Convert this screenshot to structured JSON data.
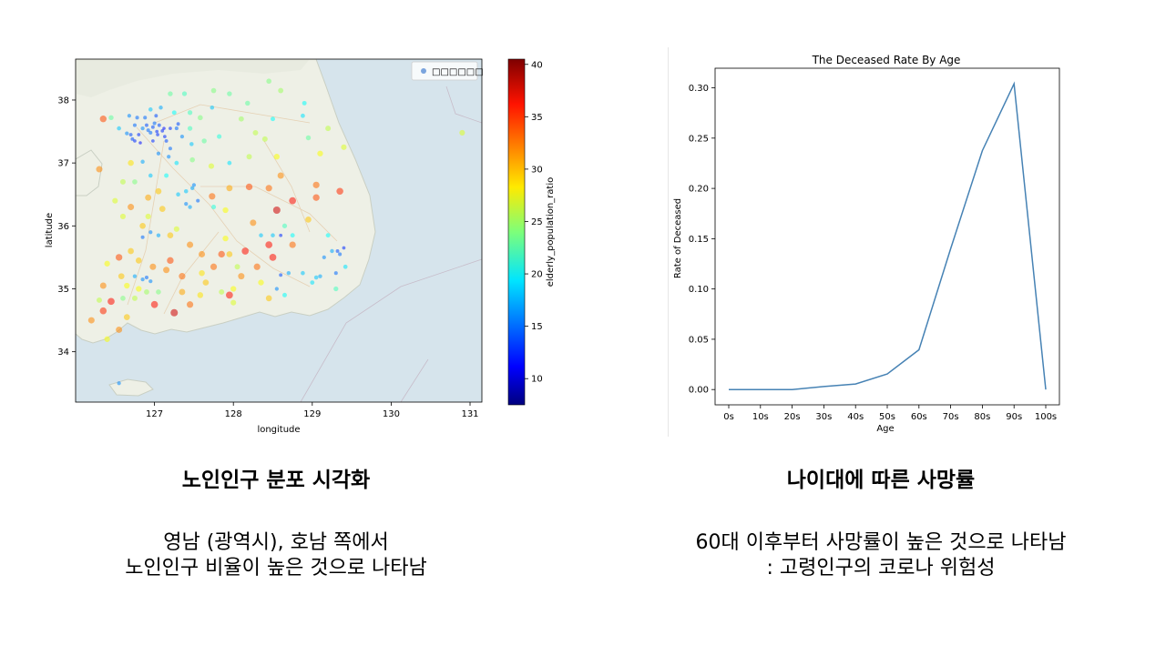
{
  "chart_data": [
    {
      "type": "scatter",
      "xlabel": "longitude",
      "ylabel": "latitude",
      "xlim": [
        126.0,
        131.15
      ],
      "ylim": [
        33.2,
        38.65
      ],
      "xticks": [
        "127",
        "128",
        "129",
        "130",
        "131"
      ],
      "yticks": [
        "34",
        "35",
        "36",
        "37",
        "38"
      ],
      "legend": [
        "□□□□□□"
      ],
      "legend_position": "top-right",
      "colorbar": {
        "label": "elderly_population_ratio",
        "min": 7.5,
        "max": 40.5,
        "ticks": [
          "10",
          "15",
          "20",
          "25",
          "30",
          "35",
          "40"
        ],
        "colormap": "jet"
      },
      "points": [
        [
          126.98,
          37.57,
          14
        ],
        [
          127.03,
          37.5,
          13
        ],
        [
          126.92,
          37.52,
          15
        ],
        [
          127.06,
          37.6,
          14
        ],
        [
          126.85,
          37.55,
          16
        ],
        [
          127.1,
          37.51,
          13
        ],
        [
          126.95,
          37.48,
          15
        ],
        [
          127.0,
          37.63,
          15
        ],
        [
          126.9,
          37.6,
          14
        ],
        [
          127.12,
          37.55,
          12
        ],
        [
          127.04,
          37.45,
          13
        ],
        [
          126.8,
          37.45,
          13
        ],
        [
          126.75,
          37.6,
          15
        ],
        [
          126.7,
          37.45,
          14
        ],
        [
          126.65,
          37.47,
          16
        ],
        [
          126.72,
          37.38,
          14
        ],
        [
          126.82,
          37.32,
          12
        ],
        [
          126.98,
          37.35,
          13
        ],
        [
          127.13,
          37.42,
          13
        ],
        [
          127.2,
          37.55,
          13
        ],
        [
          127.28,
          37.55,
          15
        ],
        [
          127.3,
          37.62,
          14
        ],
        [
          127.02,
          37.75,
          14
        ],
        [
          126.78,
          37.72,
          15
        ],
        [
          126.68,
          37.75,
          16
        ],
        [
          126.95,
          37.85,
          18
        ],
        [
          127.08,
          37.88,
          17
        ],
        [
          127.25,
          37.8,
          20
        ],
        [
          127.45,
          37.55,
          22
        ],
        [
          127.63,
          37.35,
          23
        ],
        [
          127.47,
          37.3,
          18
        ],
        [
          127.2,
          37.23,
          15
        ],
        [
          127.05,
          37.15,
          16
        ],
        [
          126.85,
          37.02,
          17
        ],
        [
          127.28,
          37.0,
          19
        ],
        [
          127.48,
          37.05,
          24
        ],
        [
          127.45,
          37.8,
          22
        ],
        [
          127.73,
          37.88,
          18
        ],
        [
          128.1,
          37.7,
          25
        ],
        [
          128.4,
          37.38,
          26
        ],
        [
          128.5,
          37.7,
          20
        ],
        [
          128.88,
          37.75,
          19
        ],
        [
          128.6,
          38.15,
          25
        ],
        [
          128.45,
          38.3,
          24
        ],
        [
          127.75,
          38.15,
          24
        ],
        [
          127.38,
          38.1,
          22
        ],
        [
          127.2,
          38.1,
          23
        ],
        [
          127.95,
          38.1,
          23
        ],
        [
          128.55,
          37.1,
          28
        ],
        [
          128.95,
          37.4,
          23
        ],
        [
          129.1,
          37.15,
          28
        ],
        [
          129.2,
          37.55,
          26
        ],
        [
          128.2,
          37.1,
          26
        ],
        [
          127.95,
          37.0,
          19
        ],
        [
          126.7,
          37.0,
          29
        ],
        [
          126.55,
          37.55,
          18
        ],
        [
          126.45,
          37.72,
          23
        ],
        [
          126.35,
          37.7,
          34
        ],
        [
          126.6,
          36.7,
          26
        ],
        [
          126.5,
          36.4,
          27
        ],
        [
          126.75,
          36.7,
          24
        ],
        [
          126.95,
          36.8,
          18
        ],
        [
          127.15,
          36.8,
          20
        ],
        [
          127.4,
          36.55,
          18
        ],
        [
          127.48,
          36.6,
          17
        ],
        [
          127.5,
          36.65,
          16
        ],
        [
          127.3,
          36.5,
          18
        ],
        [
          126.92,
          36.45,
          31
        ],
        [
          126.7,
          36.3,
          32
        ],
        [
          127.1,
          36.27,
          30
        ],
        [
          127.4,
          36.35,
          16
        ],
        [
          127.45,
          36.3,
          17
        ],
        [
          127.55,
          36.4,
          15
        ],
        [
          127.75,
          36.3,
          21
        ],
        [
          127.73,
          36.47,
          33
        ],
        [
          127.95,
          36.6,
          31
        ],
        [
          128.2,
          36.62,
          34
        ],
        [
          128.45,
          36.6,
          33
        ],
        [
          128.6,
          36.8,
          32
        ],
        [
          128.75,
          36.4,
          36
        ],
        [
          128.55,
          36.25,
          38
        ],
        [
          129.05,
          36.45,
          34
        ],
        [
          129.35,
          36.55,
          35
        ],
        [
          129.05,
          36.65,
          33
        ],
        [
          128.95,
          36.1,
          30
        ],
        [
          128.65,
          36.0,
          22
        ],
        [
          128.6,
          35.85,
          13
        ],
        [
          128.5,
          35.85,
          18
        ],
        [
          128.35,
          35.85,
          18
        ],
        [
          128.45,
          35.7,
          36
        ],
        [
          128.75,
          35.85,
          20
        ],
        [
          128.75,
          35.7,
          33
        ],
        [
          129.2,
          35.85,
          20
        ],
        [
          129.35,
          35.55,
          15
        ],
        [
          129.25,
          35.6,
          17
        ],
        [
          129.15,
          35.5,
          16
        ],
        [
          129.32,
          35.6,
          14
        ],
        [
          129.4,
          35.65,
          13
        ],
        [
          129.3,
          35.25,
          15
        ],
        [
          129.1,
          35.2,
          17
        ],
        [
          129.05,
          35.18,
          18
        ],
        [
          129.0,
          35.1,
          19
        ],
        [
          128.88,
          35.25,
          18
        ],
        [
          128.7,
          35.25,
          17
        ],
        [
          128.6,
          35.22,
          14
        ],
        [
          128.5,
          35.5,
          36
        ],
        [
          128.3,
          35.35,
          33
        ],
        [
          128.15,
          35.6,
          36
        ],
        [
          127.9,
          35.8,
          28
        ],
        [
          128.1,
          35.2,
          32
        ],
        [
          128.0,
          35.0,
          28
        ],
        [
          127.85,
          34.95,
          26
        ],
        [
          127.95,
          34.9,
          36
        ],
        [
          128.45,
          34.85,
          30
        ],
        [
          128.65,
          34.9,
          20
        ],
        [
          128.55,
          35.0,
          16
        ],
        [
          127.65,
          35.1,
          30
        ],
        [
          127.75,
          35.35,
          33
        ],
        [
          127.85,
          35.55,
          34
        ],
        [
          127.6,
          35.55,
          32
        ],
        [
          127.45,
          35.7,
          32
        ],
        [
          127.2,
          35.85,
          30
        ],
        [
          127.05,
          35.85,
          17
        ],
        [
          126.95,
          35.9,
          16
        ],
        [
          126.85,
          35.82,
          15
        ],
        [
          126.85,
          36.0,
          30
        ],
        [
          126.7,
          35.6,
          30
        ],
        [
          126.55,
          35.5,
          34
        ],
        [
          126.8,
          35.45,
          30
        ],
        [
          126.98,
          35.35,
          32
        ],
        [
          127.2,
          35.45,
          34
        ],
        [
          127.35,
          35.2,
          33
        ],
        [
          127.15,
          35.3,
          32
        ],
        [
          126.95,
          35.12,
          16
        ],
        [
          126.9,
          35.18,
          15
        ],
        [
          126.85,
          35.15,
          16
        ],
        [
          126.75,
          35.2,
          17
        ],
        [
          126.65,
          35.05,
          28
        ],
        [
          126.8,
          35.0,
          28
        ],
        [
          126.9,
          34.95,
          25
        ],
        [
          127.05,
          34.95,
          24
        ],
        [
          127.35,
          34.95,
          31
        ],
        [
          127.45,
          34.75,
          33
        ],
        [
          127.25,
          34.62,
          38
        ],
        [
          127.0,
          34.75,
          36
        ],
        [
          126.75,
          34.85,
          26
        ],
        [
          126.6,
          34.85,
          24
        ],
        [
          126.45,
          34.8,
          36
        ],
        [
          126.35,
          34.65,
          35
        ],
        [
          126.2,
          34.5,
          32
        ],
        [
          126.65,
          34.55,
          30
        ],
        [
          126.55,
          34.35,
          32
        ],
        [
          126.4,
          34.2,
          28
        ],
        [
          126.55,
          33.5,
          16
        ],
        [
          126.35,
          35.05,
          32
        ],
        [
          126.4,
          35.4,
          28
        ],
        [
          127.6,
          35.25,
          29
        ],
        [
          127.95,
          35.55,
          30
        ],
        [
          128.25,
          36.05,
          32
        ],
        [
          127.9,
          36.25,
          28
        ],
        [
          127.05,
          36.55,
          30
        ],
        [
          126.6,
          36.15,
          27
        ],
        [
          127.18,
          37.1,
          16
        ],
        [
          126.3,
          36.9,
          32
        ],
        [
          129.4,
          37.25,
          27
        ],
        [
          129.3,
          35.0,
          22
        ],
        [
          129.42,
          35.35,
          19
        ],
        [
          126.75,
          37.35,
          13
        ],
        [
          127.15,
          37.35,
          14
        ],
        [
          126.88,
          37.72,
          15
        ],
        [
          127.35,
          37.42,
          16
        ],
        [
          127.58,
          37.72,
          24
        ],
        [
          127.82,
          37.42,
          21
        ],
        [
          128.28,
          37.48,
          26
        ],
        [
          128.18,
          37.95,
          23
        ],
        [
          128.9,
          37.95,
          20
        ],
        [
          127.72,
          36.95,
          27
        ],
        [
          126.92,
          36.15,
          27
        ],
        [
          127.28,
          35.95,
          27
        ],
        [
          128.05,
          35.35,
          26
        ],
        [
          128.35,
          35.1,
          28
        ],
        [
          128.0,
          34.78,
          27
        ],
        [
          127.58,
          34.9,
          29
        ],
        [
          126.58,
          35.2,
          30
        ],
        [
          126.3,
          34.82,
          26
        ],
        [
          130.9,
          37.48,
          27
        ]
      ]
    },
    {
      "type": "line",
      "title": "The Deceased Rate By Age",
      "xlabel": "Age",
      "ylabel": "Rate of Deceased",
      "categories": [
        "0s",
        "10s",
        "20s",
        "30s",
        "40s",
        "50s",
        "60s",
        "70s",
        "80s",
        "90s",
        "100s"
      ],
      "values": [
        0.0,
        0.0,
        0.0,
        0.003,
        0.0055,
        0.0155,
        0.0395,
        0.14,
        0.2375,
        0.304,
        0.0
      ],
      "ylim": [
        -0.0152,
        0.3195
      ],
      "yticks": [
        "0.00",
        "0.05",
        "0.10",
        "0.15",
        "0.20",
        "0.25",
        "0.30"
      ],
      "color": "#4682b4"
    }
  ],
  "captions": {
    "left": {
      "heading": "노인인구 분포 시각화",
      "line1": "영남 (광역시), 호남 쪽에서",
      "line2": "노인인구 비율이 높은 것으로 나타남"
    },
    "right": {
      "heading": "나이대에 따른 사망률",
      "line1": "60대 이후부터 사망률이 높은 것으로 나타남",
      "line2": ": 고령인구의 코로나 위험성"
    }
  }
}
